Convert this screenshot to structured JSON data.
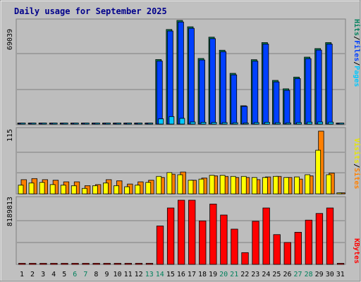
{
  "title": "Daily usage for September 2025",
  "colors": {
    "background": "#c0c0c0",
    "plot_background": "#bdbdbd",
    "gridline": "#808080",
    "title": "#00008b",
    "hits": "#00805c",
    "files": "#0040ff",
    "pages": "#00c8ff",
    "visits": "#ffff00",
    "sites": "#ff8000",
    "kbytes": "#ff0000",
    "weekend_label": "#00805c",
    "weekday_label": "#000000"
  },
  "legends": {
    "hits_label": "Hits",
    "files_label": "Files",
    "pages_label": "Pages",
    "visits_label": "Visits",
    "sites_label": "Sites",
    "kbytes_label": "KBytes",
    "separator": "/"
  },
  "chart_data": [
    {
      "type": "bar",
      "panel": "hits-files-pages",
      "ymax_label": "69039",
      "ylim": [
        0,
        69039
      ],
      "categories": [
        "1",
        "2",
        "3",
        "4",
        "5",
        "6",
        "7",
        "8",
        "9",
        "10",
        "11",
        "12",
        "13",
        "14",
        "15",
        "16",
        "17",
        "18",
        "19",
        "20",
        "21",
        "22",
        "23",
        "24",
        "25",
        "26",
        "27",
        "28",
        "29",
        "30",
        "31"
      ],
      "weekend_days": [
        "6",
        "7",
        "13",
        "14",
        "20",
        "21",
        "27",
        "28"
      ],
      "series": [
        {
          "name": "Hits",
          "values": [
            0,
            0,
            0,
            0,
            0,
            0,
            0,
            0,
            0,
            0,
            0,
            0,
            0,
            43000,
            63000,
            69039,
            64800,
            43700,
            57900,
            49200,
            33800,
            12200,
            42900,
            54300,
            29100,
            23500,
            31300,
            44600,
            50300,
            54300,
            0
          ]
        },
        {
          "name": "Files",
          "values": [
            0,
            0,
            0,
            0,
            0,
            0,
            0,
            0,
            0,
            0,
            0,
            0,
            0,
            42000,
            62000,
            68000,
            63800,
            42700,
            56900,
            48200,
            32800,
            11800,
            41900,
            53300,
            28100,
            22500,
            30300,
            43600,
            49300,
            53300,
            0
          ]
        },
        {
          "name": "Pages",
          "values": [
            0,
            0,
            0,
            0,
            0,
            0,
            0,
            0,
            0,
            0,
            0,
            0,
            0,
            3500,
            5000,
            3800,
            1400,
            1200,
            1100,
            1000,
            900,
            600,
            1000,
            1200,
            900,
            800,
            1000,
            1300,
            1400,
            1300,
            0
          ]
        }
      ]
    },
    {
      "type": "bar",
      "panel": "visits-sites",
      "ymax_label": "115",
      "ylim": [
        0,
        115
      ],
      "categories": [
        "1",
        "2",
        "3",
        "4",
        "5",
        "6",
        "7",
        "8",
        "9",
        "10",
        "11",
        "12",
        "13",
        "14",
        "15",
        "16",
        "17",
        "18",
        "19",
        "20",
        "21",
        "22",
        "23",
        "24",
        "25",
        "26",
        "27",
        "28",
        "29",
        "30",
        "31"
      ],
      "series": [
        {
          "name": "Visits",
          "values": [
            16,
            20,
            21,
            17,
            16,
            15,
            10,
            15,
            20,
            15,
            13,
            16,
            21,
            32,
            39,
            35,
            25,
            27,
            34,
            34,
            32,
            32,
            30,
            30,
            32,
            30,
            31,
            35,
            80,
            35,
            0
          ]
        },
        {
          "name": "Sites",
          "values": [
            26,
            28,
            26,
            25,
            22,
            22,
            15,
            17,
            26,
            24,
            18,
            22,
            25,
            30,
            36,
            40,
            25,
            29,
            33,
            32,
            30,
            30,
            26,
            31,
            32,
            30,
            27,
            33,
            115,
            38,
            0
          ]
        }
      ]
    },
    {
      "type": "bar",
      "panel": "kbytes",
      "ymax_label": "8189813",
      "ylim": [
        0,
        8189813
      ],
      "categories": [
        "1",
        "2",
        "3",
        "4",
        "5",
        "6",
        "7",
        "8",
        "9",
        "10",
        "11",
        "12",
        "13",
        "14",
        "15",
        "16",
        "17",
        "18",
        "19",
        "20",
        "21",
        "22",
        "23",
        "24",
        "25",
        "26",
        "27",
        "28",
        "29",
        "30",
        "31"
      ],
      "series": [
        {
          "name": "KBytes",
          "values": [
            0,
            0,
            0,
            0,
            0,
            0,
            0,
            0,
            0,
            0,
            0,
            0,
            0,
            4900000,
            7200000,
            8189813,
            8189813,
            5550000,
            7700000,
            6300000,
            4500000,
            1500000,
            5500000,
            7200000,
            3800000,
            2800000,
            4100000,
            5650000,
            6500000,
            7200000,
            0
          ]
        }
      ]
    }
  ]
}
